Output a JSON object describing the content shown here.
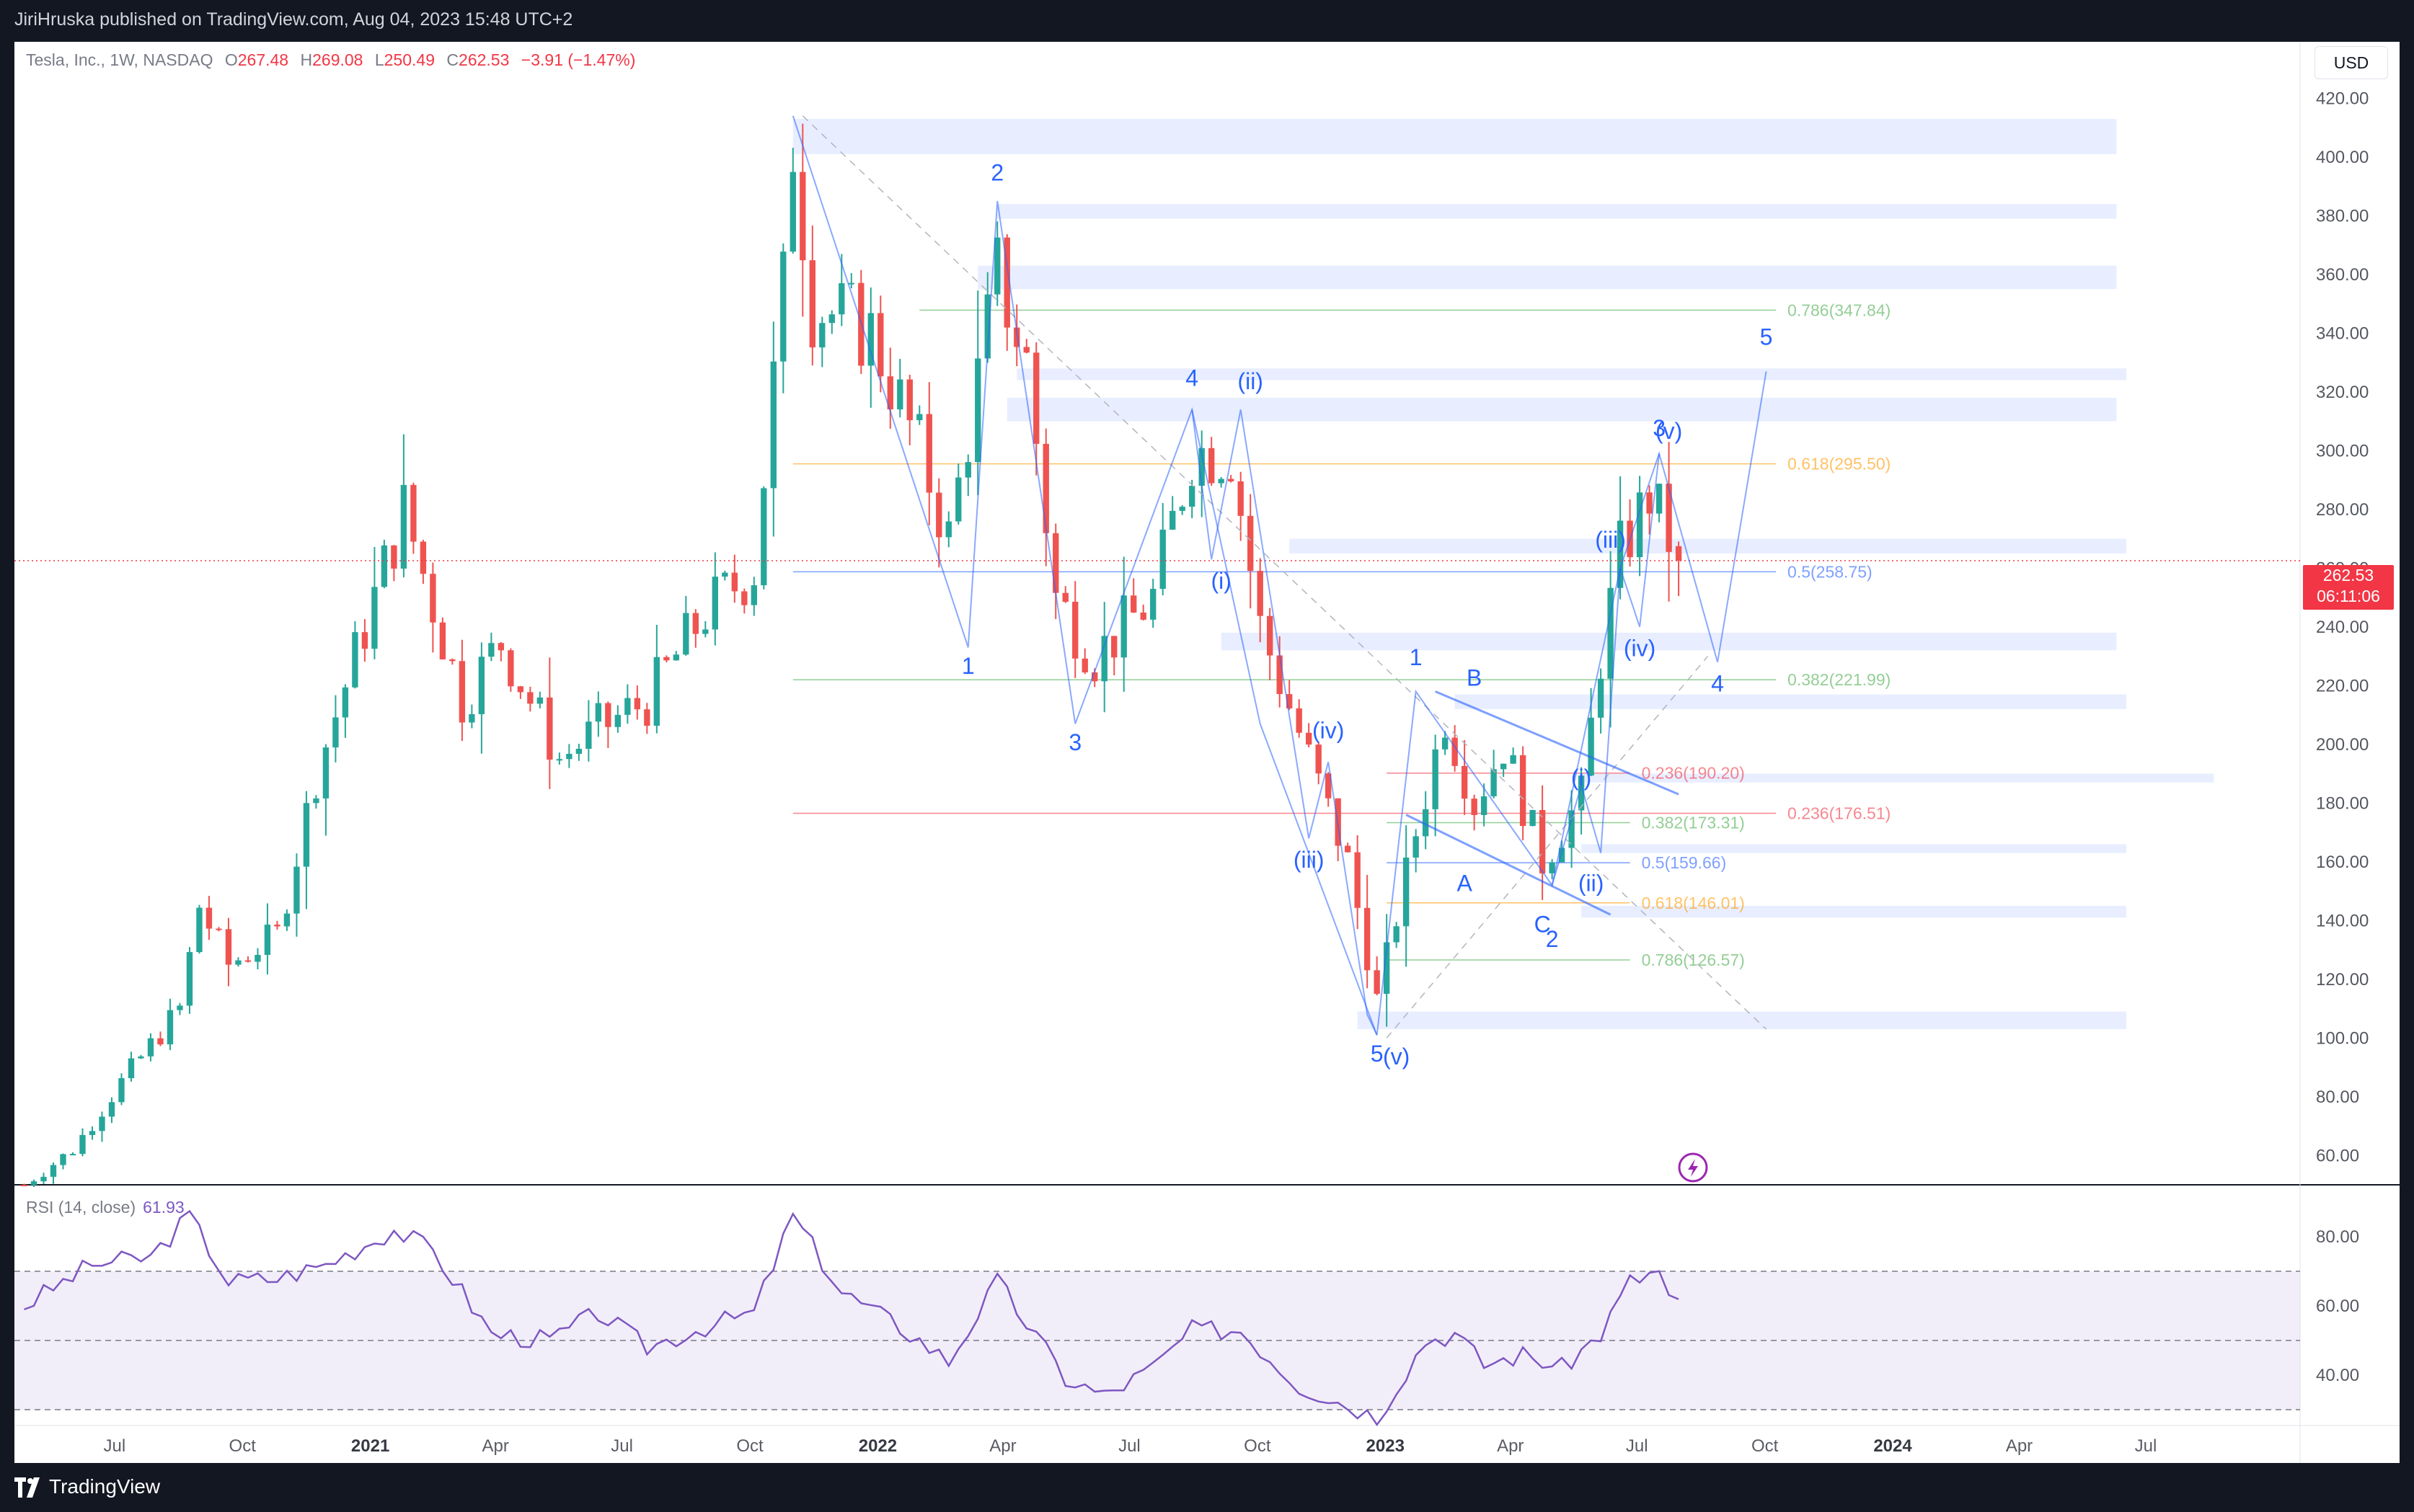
{
  "header": {
    "published": "JiriHruska published on TradingView.com, Aug 04, 2023 15:48 UTC+2"
  },
  "symbol": {
    "name": "Tesla, Inc., 1W, NASDAQ",
    "open_label": "O",
    "open": "267.48",
    "high_label": "H",
    "high": "269.08",
    "low_label": "L",
    "low": "250.49",
    "close_label": "C",
    "close": "262.53",
    "change": "−3.91 (−1.47%)"
  },
  "currency_button": "USD",
  "last_price": {
    "price": "262.53",
    "countdown": "06:11:06"
  },
  "rsi": {
    "label": "RSI (14, close)",
    "value": "61.93"
  },
  "footer": {
    "brand": "TradingView"
  },
  "colors": {
    "up": "#26a69a",
    "down": "#ef5350",
    "wave": "#2962ff",
    "rsi": "#7e57c2"
  },
  "chart_data": [
    {
      "type": "candlestick",
      "ylim": [
        50,
        425
      ],
      "y_ticks": [
        60,
        80,
        100,
        120,
        140,
        160,
        180,
        200,
        220,
        240,
        260,
        280,
        300,
        320,
        340,
        360,
        380,
        400,
        420
      ],
      "x_ticks": [
        "Jul",
        "Oct",
        "2021",
        "Apr",
        "Jul",
        "Oct",
        "2022",
        "Apr",
        "Jul",
        "Oct",
        "2023",
        "Apr",
        "Jul",
        "Oct",
        "2024",
        "Apr",
        "Jul"
      ],
      "x_tick_dates": [
        "2020-07-01",
        "2020-10-01",
        "2021-01-01",
        "2021-04-01",
        "2021-07-01",
        "2021-10-01",
        "2022-01-01",
        "2022-04-01",
        "2022-07-01",
        "2022-10-01",
        "2023-01-01",
        "2023-04-01",
        "2023-07-01",
        "2023-10-01",
        "2024-01-01",
        "2024-04-01",
        "2024-07-01"
      ],
      "xlim": [
        "2020-04-20",
        "2024-10-20"
      ],
      "anchors": [
        [
          "2020-04-27",
          50
        ],
        [
          "2020-06-01",
          62
        ],
        [
          "2020-07-06",
          85
        ],
        [
          "2020-08-17",
          110
        ],
        [
          "2020-08-31",
          145
        ],
        [
          "2020-09-21",
          125
        ],
        [
          "2020-10-26",
          135
        ],
        [
          "2020-11-23",
          190
        ],
        [
          "2020-12-28",
          240
        ],
        [
          "2021-01-25",
          280
        ],
        [
          "2021-03-08",
          215
        ],
        [
          "2021-04-05",
          235
        ],
        [
          "2021-05-17",
          195
        ],
        [
          "2021-06-14",
          205
        ],
        [
          "2021-07-19",
          215
        ],
        [
          "2021-08-30",
          245
        ],
        [
          "2021-10-04",
          260
        ],
        [
          "2021-10-25",
          355
        ],
        [
          "2021-11-01",
          405
        ],
        [
          "2021-11-15",
          350
        ],
        [
          "2021-12-27",
          340
        ],
        [
          "2022-01-31",
          300
        ],
        [
          "2022-02-21",
          270
        ],
        [
          "2022-03-28",
          360
        ],
        [
          "2022-04-18",
          330
        ],
        [
          "2022-05-09",
          250
        ],
        [
          "2022-06-06",
          230
        ],
        [
          "2022-07-18",
          250
        ],
        [
          "2022-08-15",
          300
        ],
        [
          "2022-09-12",
          300
        ],
        [
          "2022-10-03",
          240
        ],
        [
          "2022-11-07",
          195
        ],
        [
          "2022-12-05",
          160
        ],
        [
          "2022-12-26",
          113
        ],
        [
          "2023-01-23",
          170
        ],
        [
          "2023-02-13",
          210
        ],
        [
          "2023-03-06",
          180
        ],
        [
          "2023-03-27",
          200
        ],
        [
          "2023-04-24",
          160
        ],
        [
          "2023-05-22",
          182
        ],
        [
          "2023-06-05",
          230
        ],
        [
          "2023-06-19",
          265
        ],
        [
          "2023-07-10",
          285
        ],
        [
          "2023-07-31",
          262.53
        ]
      ],
      "last": {
        "open": 267.48,
        "high": 269.08,
        "low": 250.49,
        "close": 262.53
      },
      "current_price_line": 262.53,
      "zones": [
        {
          "from": "2021-11-01",
          "to": "2024-06-10",
          "low": 401,
          "high": 413
        },
        {
          "from": "2022-03-28",
          "to": "2024-06-10",
          "low": 379,
          "high": 384
        },
        {
          "from": "2022-03-14",
          "to": "2024-06-10",
          "low": 355,
          "high": 363
        },
        {
          "from": "2022-04-11",
          "to": "2024-06-17",
          "low": 324,
          "high": 328
        },
        {
          "from": "2022-04-04",
          "to": "2024-06-10",
          "low": 310,
          "high": 318
        },
        {
          "from": "2022-10-24",
          "to": "2024-06-17",
          "low": 265,
          "high": 270
        },
        {
          "from": "2022-09-05",
          "to": "2024-06-10",
          "low": 232,
          "high": 238
        },
        {
          "from": "2023-02-20",
          "to": "2024-06-17",
          "low": 212,
          "high": 217
        },
        {
          "from": "2023-05-22",
          "to": "2024-08-19",
          "low": 187,
          "high": 190
        },
        {
          "from": "2023-05-22",
          "to": "2024-06-17",
          "low": 163,
          "high": 166
        },
        {
          "from": "2023-05-22",
          "to": "2024-06-17",
          "low": 141,
          "high": 145
        },
        {
          "from": "2022-12-12",
          "to": "2024-06-17",
          "low": 103,
          "high": 109
        }
      ],
      "fib_levels": [
        {
          "label": "0.786(347.84)",
          "value": 347.84,
          "color": "#4caf50",
          "from": "2022-01-31",
          "to": "2023-10-09"
        },
        {
          "label": "0.618(295.50)",
          "value": 295.5,
          "color": "#ff9800",
          "from": "2021-11-01",
          "to": "2023-10-09"
        },
        {
          "label": "0.5(258.75)",
          "value": 258.75,
          "color": "#2962ff",
          "from": "2021-11-01",
          "to": "2023-10-09"
        },
        {
          "label": "0.382(221.99)",
          "value": 221.99,
          "color": "#4caf50",
          "from": "2021-11-01",
          "to": "2023-10-09"
        },
        {
          "label": "0.236(176.51)",
          "value": 176.51,
          "color": "#f23645",
          "from": "2021-11-01",
          "to": "2023-10-09"
        },
        {
          "label": "0.236(190.20)",
          "value": 190.2,
          "color": "#f23645",
          "from": "2023-01-02",
          "to": "2023-06-26"
        },
        {
          "label": "0.382(173.31)",
          "value": 173.31,
          "color": "#4caf50",
          "from": "2023-01-02",
          "to": "2023-06-26"
        },
        {
          "label": "0.5(159.66)",
          "value": 159.66,
          "color": "#2962ff",
          "from": "2023-01-02",
          "to": "2023-06-26"
        },
        {
          "label": "0.618(146.01)",
          "value": 146.01,
          "color": "#ff9800",
          "from": "2023-01-02",
          "to": "2023-06-26"
        },
        {
          "label": "0.786(126.57)",
          "value": 126.57,
          "color": "#4caf50",
          "from": "2023-01-02",
          "to": "2023-06-26"
        }
      ],
      "wave_path": [
        [
          "2021-11-01",
          414
        ],
        [
          "2022-03-07",
          233
        ],
        [
          "2022-03-28",
          385
        ],
        [
          "2022-05-23",
          207
        ],
        [
          "2022-08-15",
          314
        ],
        [
          "2022-10-03",
          207
        ],
        [
          "2022-12-26",
          101
        ],
        [
          "2023-01-23",
          218
        ],
        [
          "2023-05-01",
          152
        ],
        [
          "2023-06-19",
          260
        ],
        [
          "2023-07-17",
          299
        ],
        [
          "2023-08-28",
          228
        ],
        [
          "2023-10-02",
          327
        ]
      ],
      "sub_wave_path": [
        [
          "2022-08-15",
          314
        ],
        [
          "2022-08-29",
          263
        ],
        [
          "2022-09-19",
          314
        ],
        [
          "2022-11-07",
          168
        ],
        [
          "2022-11-21",
          194
        ],
        [
          "2022-12-19",
          108
        ],
        [
          "2022-12-26",
          101
        ]
      ],
      "sub_wave_path2": [
        [
          "2023-05-01",
          152
        ],
        [
          "2023-05-22",
          186
        ],
        [
          "2023-06-05",
          163
        ],
        [
          "2023-06-19",
          260
        ],
        [
          "2023-07-03",
          240
        ],
        [
          "2023-07-17",
          299
        ]
      ],
      "channel_lines": [
        [
          [
            "2023-02-06",
            218
          ],
          [
            "2023-07-31",
            183
          ]
        ],
        [
          [
            "2023-01-16",
            176
          ],
          [
            "2023-06-12",
            142
          ]
        ]
      ],
      "dashed_line": [
        [
          "2021-11-08",
          414
        ],
        [
          "2023-10-02",
          103
        ]
      ],
      "dashed_line2": [
        [
          "2023-01-02",
          100
        ],
        [
          "2023-08-21",
          230
        ]
      ],
      "wave_labels": [
        {
          "text": "2",
          "date": "2022-03-28",
          "price": 392
        },
        {
          "text": "1",
          "date": "2022-03-07",
          "price": 224
        },
        {
          "text": "3",
          "date": "2022-05-23",
          "price": 198
        },
        {
          "text": "4",
          "date": "2022-08-15",
          "price": 322
        },
        {
          "text": "(ii)",
          "date": "2022-09-26",
          "price": 321
        },
        {
          "text": "(i)",
          "date": "2022-09-05",
          "price": 253
        },
        {
          "text": "(iv)",
          "date": "2022-11-21",
          "price": 202
        },
        {
          "text": "(iii)",
          "date": "2022-11-07",
          "price": 158
        },
        {
          "text": "5",
          "date": "2022-12-26",
          "price": 92
        },
        {
          "text": "(v)",
          "date": "2023-01-09",
          "price": 91
        },
        {
          "text": "1",
          "date": "2023-01-23",
          "price": 227
        },
        {
          "text": "B",
          "date": "2023-03-06",
          "price": 220
        },
        {
          "text": "A",
          "date": "2023-02-27",
          "price": 150
        },
        {
          "text": "C",
          "date": "2023-04-24",
          "price": 136
        },
        {
          "text": "2",
          "date": "2023-05-01",
          "price": 131
        },
        {
          "text": "(i)",
          "date": "2023-05-22",
          "price": 186
        },
        {
          "text": "(ii)",
          "date": "2023-05-29",
          "price": 150
        },
        {
          "text": "(iii)",
          "date": "2023-06-12",
          "price": 267
        },
        {
          "text": "(iv)",
          "date": "2023-07-03",
          "price": 230
        },
        {
          "text": "3",
          "date": "2023-07-17",
          "price": 305
        },
        {
          "text": "(v)",
          "date": "2023-07-24",
          "price": 304
        },
        {
          "text": "4",
          "date": "2023-08-28",
          "price": 218
        },
        {
          "text": "5",
          "date": "2023-10-02",
          "price": 336
        }
      ]
    },
    {
      "type": "line",
      "name": "RSI (14, close)",
      "ylim": [
        25,
        90
      ],
      "y_ticks": [
        40,
        60,
        80
      ],
      "levels": [
        30,
        50,
        70
      ],
      "anchors": [
        [
          "2020-04-27",
          60
        ],
        [
          "2020-06-15",
          72
        ],
        [
          "2020-07-27",
          74
        ],
        [
          "2020-08-24",
          86
        ],
        [
          "2020-09-21",
          67
        ],
        [
          "2020-10-26",
          68
        ],
        [
          "2020-11-30",
          72
        ],
        [
          "2021-01-18",
          82
        ],
        [
          "2021-02-15",
          76
        ],
        [
          "2021-03-29",
          52
        ],
        [
          "2021-05-10",
          50
        ],
        [
          "2021-06-14",
          58
        ],
        [
          "2021-07-19",
          48
        ],
        [
          "2021-08-30",
          54
        ],
        [
          "2021-10-04",
          58
        ],
        [
          "2021-11-01",
          86
        ],
        [
          "2021-12-06",
          64
        ],
        [
          "2022-01-17",
          54
        ],
        [
          "2022-02-21",
          44
        ],
        [
          "2022-03-28",
          67
        ],
        [
          "2022-05-16",
          39
        ],
        [
          "2022-06-13",
          34
        ],
        [
          "2022-07-18",
          42
        ],
        [
          "2022-08-15",
          53
        ],
        [
          "2022-09-19",
          53
        ],
        [
          "2022-10-31",
          37
        ],
        [
          "2022-12-26",
          28
        ],
        [
          "2023-01-30",
          50
        ],
        [
          "2023-02-20",
          52
        ],
        [
          "2023-03-13",
          43
        ],
        [
          "2023-04-10",
          46
        ],
        [
          "2023-05-08",
          42
        ],
        [
          "2023-06-05",
          52
        ],
        [
          "2023-06-26",
          67
        ],
        [
          "2023-07-17",
          70
        ],
        [
          "2023-07-24",
          62
        ],
        [
          "2023-07-31",
          61.93
        ]
      ]
    }
  ]
}
